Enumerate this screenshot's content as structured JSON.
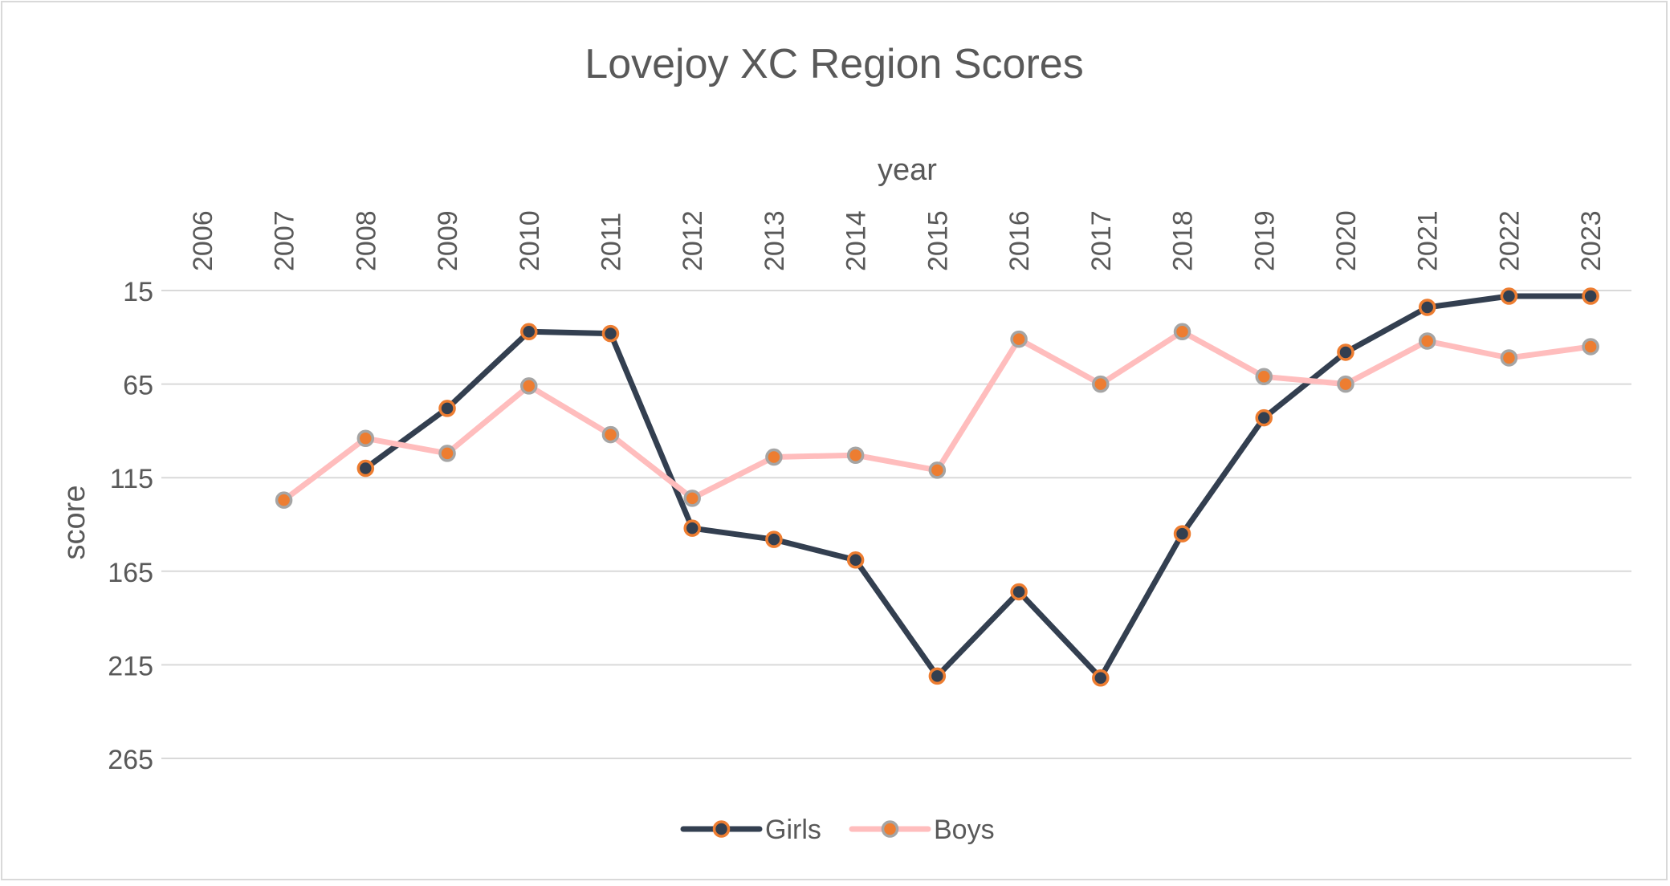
{
  "chart_data": {
    "type": "line",
    "title": "Lovejoy XC Region Scores",
    "xlabel": "year",
    "ylabel": "score",
    "categories": [
      "2006",
      "2007",
      "2008",
      "2009",
      "2010",
      "2011",
      "2012",
      "2013",
      "2014",
      "2015",
      "2016",
      "2017",
      "2018",
      "2019",
      "2020",
      "2021",
      "2022",
      "2023"
    ],
    "y_ticks": [
      "15",
      "65",
      "115",
      "165",
      "215",
      "265"
    ],
    "ylim": [
      15,
      265
    ],
    "y_reversed": true,
    "x_axis_position": "top",
    "grid": true,
    "legend_position": "bottom",
    "series": [
      {
        "name": "Girls",
        "color": "#333f50",
        "marker_fill": "#333f50",
        "marker_stroke": "#ed7d31",
        "values": [
          null,
          null,
          110,
          78,
          37,
          38,
          142,
          148,
          159,
          221,
          176,
          222,
          145,
          83,
          48,
          24,
          18,
          18
        ]
      },
      {
        "name": "Boys",
        "color": "#ffbdbd",
        "marker_fill": "#ed7d31",
        "marker_stroke": "#a5a5a5",
        "values": [
          null,
          127,
          94,
          102,
          66,
          92,
          126,
          104,
          103,
          111,
          41,
          65,
          37,
          61,
          65,
          42,
          51,
          45
        ]
      }
    ]
  }
}
